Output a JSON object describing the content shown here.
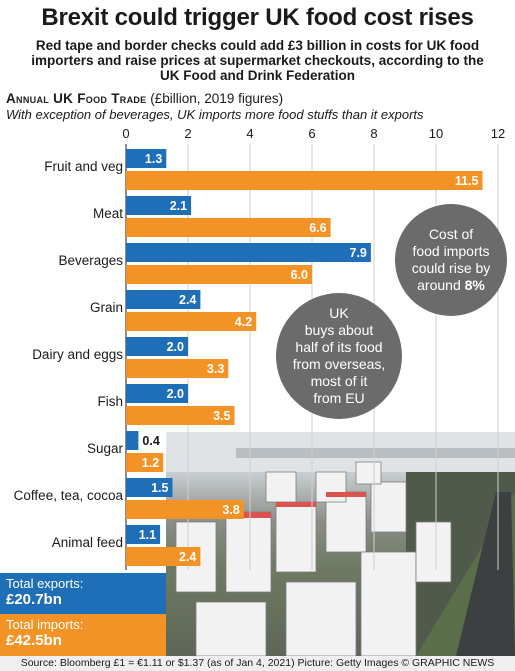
{
  "header": {
    "title": "Brexit could trigger UK food cost rises",
    "subtitle": "Red tape and border checks could add £3 billion in costs for UK food importers and raise prices at supermarket checkouts, according to the UK Food and Drink Federation"
  },
  "section": {
    "heading": "Annual UK Food Trade",
    "heading_note": "(£billion, 2019 figures)",
    "subheading": "With exception of beverages, UK imports more food stuffs than it exports"
  },
  "chart_data": {
    "type": "bar",
    "orientation": "horizontal",
    "categories": [
      "Fruit and veg",
      "Meat",
      "Beverages",
      "Grain",
      "Dairy and eggs",
      "Fish",
      "Sugar",
      "Coffee, tea, cocoa",
      "Animal feed"
    ],
    "series": [
      {
        "name": "Total exports",
        "color": "#1f6fb8",
        "values": [
          1.3,
          2.1,
          7.9,
          2.4,
          2.0,
          2.0,
          0.4,
          1.5,
          1.1
        ]
      },
      {
        "name": "Total imports",
        "color": "#f39325",
        "values": [
          11.5,
          6.6,
          6.0,
          4.2,
          3.3,
          3.5,
          1.2,
          3.8,
          2.4
        ]
      }
    ],
    "xlim": [
      0,
      12
    ],
    "xticks": [
      "0",
      "2",
      "4",
      "6",
      "8",
      "10",
      "12"
    ],
    "grid": true
  },
  "callouts": {
    "bubble1": [
      "Cost of",
      "food imports",
      "could rise by",
      "around"
    ],
    "bubble1_strong": "8%",
    "bubble2": [
      "UK",
      "buys about",
      "half of its food",
      "from overseas,",
      "most of it",
      "from EU"
    ]
  },
  "totals": {
    "exports_label": "Total exports:",
    "exports_value": "£20.7bn",
    "imports_label": "Total imports:",
    "imports_value": "£42.5bn"
  },
  "footer": {
    "source": "Source: Bloomberg £1 = €1.11 or $1.37 (as of Jan 4, 2021) Picture: Getty Images © GRAPHIC NEWS"
  }
}
